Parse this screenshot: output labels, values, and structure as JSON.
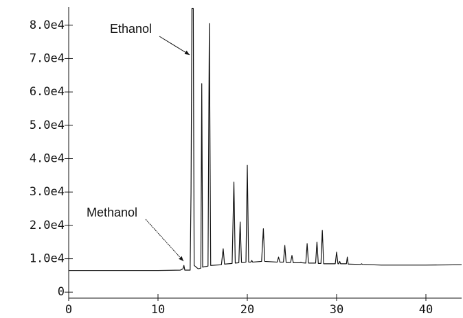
{
  "chart_data": {
    "type": "line",
    "annotations": [
      "Ethanol",
      "Methanol"
    ],
    "x": [
      0,
      10,
      12.5,
      12.8,
      12.9,
      13.0,
      13.6,
      13.7,
      13.8,
      13.95,
      14.05,
      14.5,
      14.8,
      14.9,
      15.0,
      15.6,
      15.75,
      15.9,
      17.1,
      17.3,
      17.45,
      18.3,
      18.5,
      18.65,
      19.05,
      19.2,
      19.35,
      19.85,
      20.0,
      20.15,
      20.4,
      20.5,
      20.6,
      21.6,
      21.8,
      21.95,
      23.35,
      23.5,
      23.65,
      24.05,
      24.2,
      24.35,
      24.85,
      25.0,
      25.15,
      25.9,
      26.0,
      26.1,
      26.55,
      26.7,
      26.85,
      27.65,
      27.8,
      27.95,
      28.25,
      28.4,
      28.55,
      29.85,
      30.0,
      30.15,
      30.25,
      30.35,
      30.45,
      31.1,
      31.2,
      31.3,
      32.7,
      32.8,
      32.9,
      35,
      40,
      44
    ],
    "series": [
      {
        "color": "#111111",
        "values": [
          6500,
          6500,
          6600,
          7000,
          8000,
          6600,
          6600,
          30000,
          85000,
          85000,
          8000,
          7000,
          7200,
          62500,
          7500,
          7800,
          80500,
          8000,
          8200,
          13000,
          8400,
          8600,
          33000,
          8700,
          8800,
          21000,
          8900,
          9000,
          38000,
          9000,
          9000,
          9500,
          9000,
          9200,
          19000,
          9200,
          9000,
          10500,
          9000,
          9000,
          14000,
          8900,
          8900,
          11000,
          8800,
          8800,
          9000,
          8800,
          8700,
          14500,
          8700,
          8700,
          15000,
          8600,
          8600,
          18500,
          8500,
          8500,
          12000,
          8500,
          8500,
          9200,
          8500,
          8500,
          10500,
          8400,
          8300,
          8500,
          8300,
          8100,
          8100,
          8200
        ]
      }
    ],
    "xlim": [
      0,
      44
    ],
    "xticks": [
      0,
      10,
      20,
      30,
      40
    ],
    "ylim": [
      -1800,
      85500
    ],
    "yticks": [
      0,
      {
        "value": 10000,
        "label": "1.0e4"
      },
      {
        "value": 20000,
        "label": "2.0e4"
      },
      {
        "value": 30000,
        "label": "3.0e4"
      },
      {
        "value": 40000,
        "label": "4.0e4"
      },
      {
        "value": 50000,
        "label": "5.0e4"
      },
      {
        "value": 60000,
        "label": "6.0e4"
      },
      {
        "value": 70000,
        "label": "7.0e4"
      },
      {
        "value": 80000,
        "label": "8.0e4"
      }
    ]
  }
}
